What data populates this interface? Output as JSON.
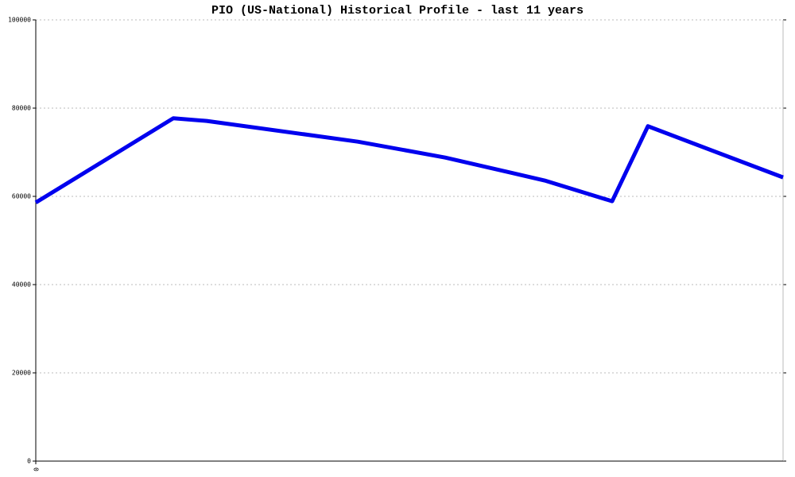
{
  "chart_data": {
    "type": "line",
    "title": "PIO (US-National) Historical Profile - last 11 years",
    "x": [
      0,
      173,
      215,
      405,
      515,
      640,
      725,
      770,
      940
    ],
    "series": [
      {
        "name": "PIO",
        "color": "#0000ee",
        "values": [
          58600,
          77700,
          77100,
          72400,
          68800,
          63600,
          58900,
          75900,
          64300
        ]
      }
    ],
    "xlim": [
      0,
      940
    ],
    "xticks": [
      0
    ],
    "ylim": [
      0,
      100000
    ],
    "yticks": [
      0,
      20000,
      40000,
      60000,
      80000,
      100000
    ],
    "grid": true
  }
}
